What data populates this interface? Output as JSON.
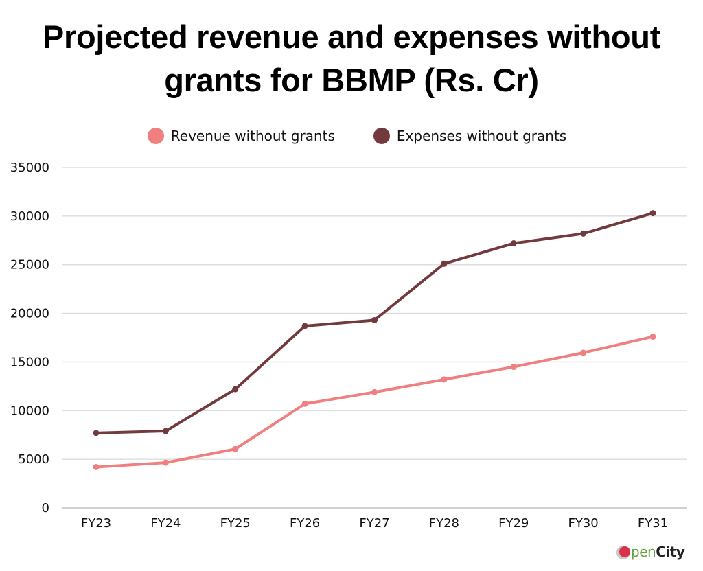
{
  "chart_data": {
    "type": "line",
    "title": "Projected revenue and expenses without grants for BBMP (Rs. Cr)",
    "title_lines": [
      "Projected revenue and expenses without",
      "grants for BBMP (Rs. Cr)"
    ],
    "xlabel": "",
    "ylabel": "",
    "categories": [
      "FY23",
      "FY24",
      "FY25",
      "FY26",
      "FY27",
      "FY28",
      "FY29",
      "FY30",
      "FY31"
    ],
    "ylim": [
      0,
      35000
    ],
    "yticks": [
      0,
      5000,
      10000,
      15000,
      20000,
      25000,
      30000,
      35000
    ],
    "ytick_labels": [
      "0",
      "5000",
      "10000",
      "15000",
      "20000",
      "25000",
      "30000",
      "35000"
    ],
    "grid": true,
    "legend_position": "top-center",
    "series": [
      {
        "name": "Revenue without grants",
        "color": "#f08080",
        "values": [
          4200,
          4650,
          6050,
          10700,
          11900,
          13200,
          14500,
          15950,
          17600
        ]
      },
      {
        "name": "Expenses without grants",
        "color": "#733a3e",
        "values": [
          7700,
          7900,
          12200,
          18700,
          19300,
          25100,
          27200,
          28200,
          30300
        ]
      }
    ]
  },
  "branding": {
    "logo_part1": "pen",
    "logo_part2": "City",
    "logo_name": "OpenCity"
  }
}
